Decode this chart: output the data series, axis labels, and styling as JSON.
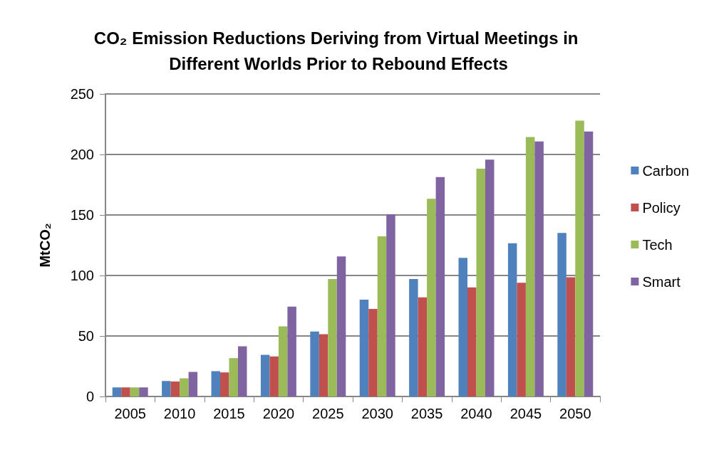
{
  "chart_data": {
    "type": "bar",
    "title": "CO₂ Emission Reductions Deriving from Virtual Meetings in Different Worlds Prior to Rebound Effects",
    "ylabel": "MtCO₂",
    "categories": [
      "2005",
      "2010",
      "2015",
      "2020",
      "2025",
      "2030",
      "2035",
      "2040",
      "2045",
      "2050"
    ],
    "series": [
      {
        "name": "Carbon",
        "color": "#4f81bd",
        "values": [
          7.5,
          12.8,
          20.9,
          34.4,
          53.7,
          80,
          97,
          114.6,
          126.6,
          135.2
        ]
      },
      {
        "name": "Policy",
        "color": "#c0504d",
        "values": [
          7.5,
          12.4,
          19.9,
          33.1,
          51.4,
          72.4,
          81.9,
          90.2,
          93.9,
          98.6
        ]
      },
      {
        "name": "Tech",
        "color": "#9bbb59",
        "values": [
          7.5,
          15,
          31.7,
          57.9,
          97,
          132.3,
          163.4,
          188.2,
          214.4,
          228
        ]
      },
      {
        "name": "Smart",
        "color": "#8064a2",
        "values": [
          7.5,
          20.3,
          41.5,
          74.2,
          115.7,
          150.6,
          181.3,
          195.7,
          210.8,
          219
        ]
      }
    ],
    "ylim": [
      0,
      250
    ],
    "yticks": [
      0,
      50,
      100,
      150,
      200,
      250
    ],
    "grid": "y",
    "legend": "right"
  }
}
